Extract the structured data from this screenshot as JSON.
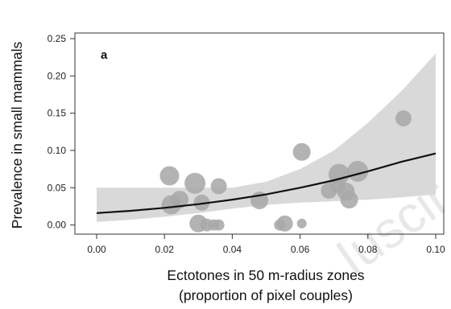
{
  "chart_data": {
    "type": "scatter",
    "panel_label": "a",
    "xlabel_line1": "Ectotones in 50 m-radius zones",
    "xlabel_line2": "(proportion of pixel couples)",
    "ylabel": "Prevalence in  small mammals",
    "xlim": [
      0.0,
      0.1
    ],
    "ylim": [
      -0.003,
      0.265
    ],
    "x_ticks": [
      0.0,
      0.02,
      0.04,
      0.06,
      0.08,
      0.1
    ],
    "x_tick_labels": [
      "0.00",
      "0.02",
      "0.04",
      "0.06",
      "0.08",
      "0.10"
    ],
    "y_ticks": [
      0.0,
      0.05,
      0.1,
      0.15,
      0.2,
      0.25
    ],
    "y_tick_labels": [
      "0.00",
      "0.05",
      "0.10",
      "0.15",
      "0.20",
      "0.25"
    ],
    "grid": false,
    "points": [
      {
        "x": 0.0215,
        "y": 0.066,
        "size": 12
      },
      {
        "x": 0.022,
        "y": 0.027,
        "size": 12
      },
      {
        "x": 0.0245,
        "y": 0.034,
        "size": 11
      },
      {
        "x": 0.029,
        "y": 0.056,
        "size": 13
      },
      {
        "x": 0.031,
        "y": 0.03,
        "size": 10
      },
      {
        "x": 0.036,
        "y": 0.052,
        "size": 10
      },
      {
        "x": 0.03,
        "y": 0.002,
        "size": 11
      },
      {
        "x": 0.0325,
        "y": 0.0,
        "size": 8
      },
      {
        "x": 0.0345,
        "y": 0.0,
        "size": 7
      },
      {
        "x": 0.036,
        "y": 0.0,
        "size": 7
      },
      {
        "x": 0.048,
        "y": 0.033,
        "size": 11
      },
      {
        "x": 0.054,
        "y": 0.0,
        "size": 7
      },
      {
        "x": 0.0555,
        "y": 0.002,
        "size": 10
      },
      {
        "x": 0.0605,
        "y": 0.098,
        "size": 11
      },
      {
        "x": 0.0605,
        "y": 0.002,
        "size": 6
      },
      {
        "x": 0.0685,
        "y": 0.046,
        "size": 10
      },
      {
        "x": 0.071,
        "y": 0.054,
        "size": 10
      },
      {
        "x": 0.0715,
        "y": 0.068,
        "size": 13
      },
      {
        "x": 0.0735,
        "y": 0.045,
        "size": 11
      },
      {
        "x": 0.0745,
        "y": 0.034,
        "size": 11
      },
      {
        "x": 0.077,
        "y": 0.072,
        "size": 13
      },
      {
        "x": 0.0905,
        "y": 0.143,
        "size": 10
      }
    ],
    "fit_curve": [
      {
        "x": 0.0,
        "y": 0.016
      },
      {
        "x": 0.01,
        "y": 0.019
      },
      {
        "x": 0.02,
        "y": 0.023
      },
      {
        "x": 0.03,
        "y": 0.028
      },
      {
        "x": 0.04,
        "y": 0.034
      },
      {
        "x": 0.05,
        "y": 0.041
      },
      {
        "x": 0.06,
        "y": 0.05
      },
      {
        "x": 0.07,
        "y": 0.06
      },
      {
        "x": 0.08,
        "y": 0.072
      },
      {
        "x": 0.09,
        "y": 0.085
      },
      {
        "x": 0.1,
        "y": 0.096
      }
    ],
    "ci_band": [
      {
        "x": 0.0,
        "lo": 0.004,
        "hi": 0.05
      },
      {
        "x": 0.01,
        "lo": 0.007,
        "hi": 0.05
      },
      {
        "x": 0.02,
        "lo": 0.011,
        "hi": 0.05
      },
      {
        "x": 0.03,
        "lo": 0.016,
        "hi": 0.05
      },
      {
        "x": 0.04,
        "lo": 0.022,
        "hi": 0.05
      },
      {
        "x": 0.05,
        "lo": 0.027,
        "hi": 0.058
      },
      {
        "x": 0.06,
        "lo": 0.03,
        "hi": 0.075
      },
      {
        "x": 0.07,
        "lo": 0.032,
        "hi": 0.1
      },
      {
        "x": 0.08,
        "lo": 0.034,
        "hi": 0.137
      },
      {
        "x": 0.09,
        "lo": 0.037,
        "hi": 0.18
      },
      {
        "x": 0.1,
        "lo": 0.041,
        "hi": 0.23
      }
    ],
    "colors": {
      "points": "#a9a9a9",
      "band": "#d9d9d9",
      "curve": "#111111",
      "axis": "#333333",
      "watermark": "#e8e8e8"
    }
  },
  "watermark_text": "Iuscir"
}
